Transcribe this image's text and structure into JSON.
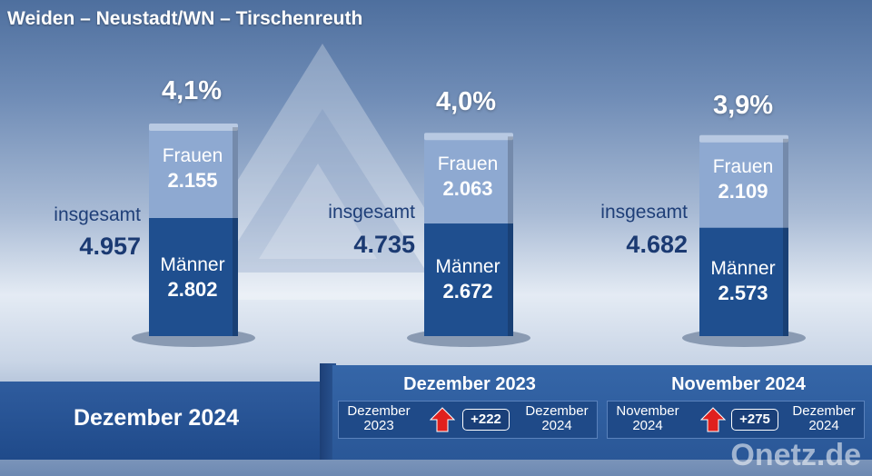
{
  "region_title": "Weiden – Neustadt/WN – Tirschenreuth",
  "current_period": "Dezember 2024",
  "colors": {
    "men": "#1f4f8f",
    "women": "#8ea9d1",
    "arrow": "#e0201e"
  },
  "chart_data": {
    "type": "bar",
    "stacked": true,
    "categories": [
      "Dezember 2024",
      "Dezember 2023",
      "November 2024"
    ],
    "series": [
      {
        "name": "Männer",
        "values": [
          2802,
          2672,
          2573
        ]
      },
      {
        "name": "Frauen",
        "values": [
          2155,
          2063,
          2109
        ]
      }
    ],
    "totals": [
      4957,
      4735,
      4682
    ],
    "rates": [
      "4,1%",
      "4,0%",
      "3,9%"
    ],
    "labels": {
      "total": "insgesamt",
      "women": "Frauen",
      "men": "Männer",
      "totals": [
        "4.957",
        "4.735",
        "4.682"
      ],
      "women_values": [
        "2.155",
        "2.063",
        "2.109"
      ],
      "men_values": [
        "2.802",
        "2.672",
        "2.573"
      ]
    }
  },
  "comparisons": [
    {
      "heading": "Dezember 2023",
      "from": [
        "Dezember",
        "2023"
      ],
      "delta": "+222",
      "to": [
        "Dezember",
        "2024"
      ],
      "icon": "red-up-arrow-icon"
    },
    {
      "heading": "November 2024",
      "from": [
        "November",
        "2024"
      ],
      "delta": "+275",
      "to": [
        "Dezember",
        "2024"
      ],
      "icon": "red-up-arrow-icon"
    }
  ],
  "watermark": "Onetz.de"
}
